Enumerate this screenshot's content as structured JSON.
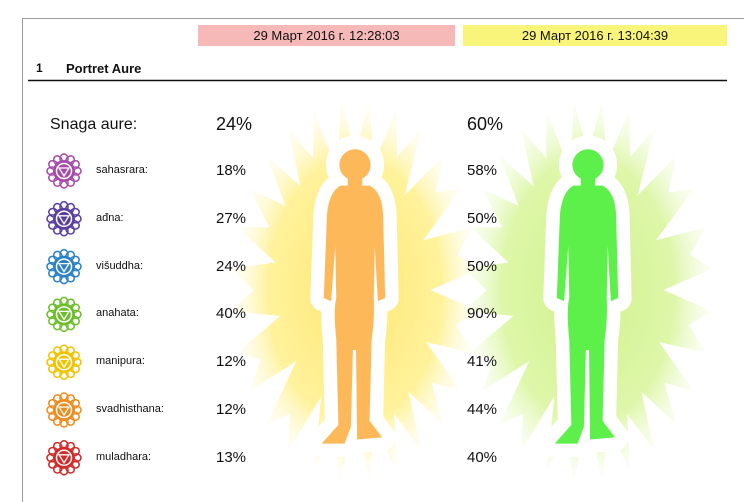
{
  "header": {
    "dates": [
      "29 Март 2016 г. 12:28:03",
      "29 Март 2016 г. 13:04:39"
    ]
  },
  "section": {
    "number": "1",
    "title": "Portret Aure"
  },
  "aura": {
    "label": "Snaga aure:",
    "values": [
      "24%",
      "60%"
    ]
  },
  "chakras": [
    {
      "name": "sahasrara:",
      "values": [
        "18%",
        "58%"
      ]
    },
    {
      "name": "ađna:",
      "values": [
        "27%",
        "50%"
      ]
    },
    {
      "name": "višuddha:",
      "values": [
        "24%",
        "50%"
      ]
    },
    {
      "name": "anahata:",
      "values": [
        "40%",
        "90%"
      ]
    },
    {
      "name": "manipura:",
      "values": [
        "12%",
        "41%"
      ]
    },
    {
      "name": "svadhisthana:",
      "values": [
        "12%",
        "44%"
      ]
    },
    {
      "name": "muladhara:",
      "values": [
        "13%",
        "40%"
      ]
    }
  ]
}
